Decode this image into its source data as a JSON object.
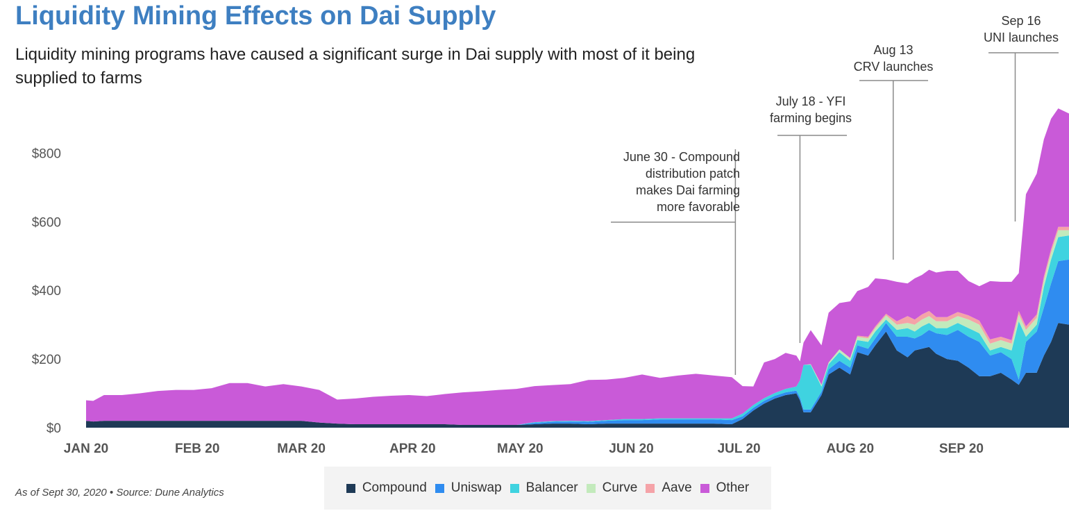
{
  "title": "Liquidity Mining Effects on Dai Supply",
  "subtitle": "Liquidity mining programs have caused a significant surge in Dai supply with most of it being supplied to farms",
  "source": "As of Sept 30, 2020 • Source: Dune Analytics",
  "chart_data": {
    "type": "area",
    "stacked": true,
    "ylim": [
      0,
      1000
    ],
    "yticks": [
      {
        "value": 0,
        "label": "$0"
      },
      {
        "value": 200,
        "label": "$200"
      },
      {
        "value": 400,
        "label": "$400"
      },
      {
        "value": 600,
        "label": "$600"
      },
      {
        "value": 800,
        "label": "$800"
      }
    ],
    "xlim": [
      0,
      274
    ],
    "xticks": [
      {
        "day": 0,
        "label": "JAN 20"
      },
      {
        "day": 31,
        "label": "FEB 20"
      },
      {
        "day": 60,
        "label": "MAR 20"
      },
      {
        "day": 91,
        "label": "APR 20"
      },
      {
        "day": 121,
        "label": "MAY 20"
      },
      {
        "day": 152,
        "label": "JUN 20"
      },
      {
        "day": 182,
        "label": "JUL 20"
      },
      {
        "day": 213,
        "label": "AUG 20"
      },
      {
        "day": 244,
        "label": "SEP 20"
      }
    ],
    "x": [
      0,
      2,
      5,
      10,
      15,
      20,
      25,
      30,
      35,
      40,
      45,
      50,
      55,
      60,
      65,
      70,
      75,
      80,
      85,
      90,
      95,
      100,
      105,
      110,
      115,
      120,
      125,
      130,
      135,
      140,
      145,
      150,
      155,
      160,
      165,
      170,
      175,
      180,
      183,
      186,
      189,
      192,
      195,
      198,
      199,
      200,
      202,
      205,
      207,
      210,
      213,
      215,
      218,
      220,
      223,
      226,
      229,
      231,
      233,
      235,
      237,
      240,
      243,
      246,
      249,
      252,
      255,
      258,
      260,
      262,
      265,
      267,
      269,
      271,
      274
    ],
    "series": [
      {
        "name": "Compound",
        "color": "#1e3a56",
        "values": [
          20,
          18,
          20,
          20,
          20,
          20,
          20,
          20,
          20,
          20,
          20,
          20,
          20,
          20,
          15,
          12,
          10,
          10,
          10,
          10,
          10,
          10,
          8,
          8,
          8,
          8,
          10,
          12,
          12,
          10,
          12,
          12,
          12,
          12,
          12,
          12,
          12,
          10,
          25,
          50,
          70,
          85,
          95,
          100,
          80,
          45,
          45,
          95,
          155,
          175,
          155,
          220,
          210,
          240,
          280,
          225,
          205,
          225,
          230,
          235,
          215,
          200,
          195,
          175,
          150,
          150,
          160,
          140,
          125,
          160,
          160,
          210,
          250,
          305,
          300
        ]
      },
      {
        "name": "Uniswap",
        "color": "#2f8cf0",
        "values": [
          0,
          0,
          0,
          0,
          0,
          0,
          0,
          0,
          0,
          0,
          0,
          0,
          0,
          0,
          0,
          0,
          0,
          0,
          0,
          0,
          0,
          0,
          0,
          0,
          0,
          0,
          4,
          5,
          6,
          7,
          8,
          10,
          10,
          12,
          12,
          12,
          12,
          12,
          8,
          8,
          8,
          8,
          8,
          8,
          8,
          8,
          8,
          10,
          15,
          20,
          20,
          20,
          20,
          20,
          25,
          40,
          60,
          35,
          40,
          50,
          60,
          70,
          90,
          90,
          100,
          60,
          60,
          60,
          15,
          90,
          120,
          140,
          170,
          180,
          190
        ]
      },
      {
        "name": "Balancer",
        "color": "#3fd3e0",
        "values": [
          0,
          0,
          0,
          0,
          0,
          0,
          0,
          0,
          0,
          0,
          0,
          0,
          0,
          0,
          0,
          0,
          0,
          0,
          0,
          0,
          0,
          0,
          0,
          0,
          0,
          0,
          2,
          2,
          2,
          2,
          2,
          3,
          3,
          3,
          3,
          3,
          3,
          5,
          8,
          8,
          8,
          8,
          10,
          12,
          50,
          130,
          130,
          15,
          15,
          25,
          20,
          15,
          20,
          20,
          10,
          20,
          25,
          20,
          25,
          20,
          15,
          20,
          20,
          25,
          25,
          15,
          15,
          25,
          170,
          15,
          20,
          60,
          70,
          70,
          70
        ]
      },
      {
        "name": "Curve",
        "color": "#c3eabc",
        "values": [
          0,
          0,
          0,
          0,
          0,
          0,
          0,
          0,
          0,
          0,
          0,
          0,
          0,
          0,
          0,
          0,
          0,
          0,
          0,
          0,
          0,
          0,
          0,
          0,
          0,
          0,
          0,
          0,
          0,
          0,
          0,
          0,
          0,
          0,
          0,
          0,
          0,
          0,
          0,
          0,
          0,
          0,
          0,
          0,
          0,
          0,
          2,
          5,
          5,
          8,
          8,
          10,
          10,
          10,
          12,
          15,
          15,
          20,
          20,
          20,
          20,
          20,
          20,
          25,
          25,
          20,
          20,
          20,
          20,
          20,
          20,
          20,
          20,
          20,
          15
        ]
      },
      {
        "name": "Aave",
        "color": "#f5a3a8",
        "values": [
          0,
          0,
          0,
          0,
          0,
          0,
          0,
          0,
          0,
          0,
          0,
          0,
          0,
          0,
          0,
          0,
          0,
          0,
          0,
          0,
          0,
          0,
          0,
          0,
          0,
          0,
          0,
          0,
          0,
          0,
          0,
          0,
          0,
          0,
          0,
          0,
          0,
          0,
          0,
          0,
          0,
          0,
          0,
          0,
          0,
          0,
          0,
          0,
          0,
          0,
          0,
          3,
          5,
          5,
          5,
          10,
          20,
          15,
          15,
          15,
          12,
          12,
          12,
          12,
          12,
          12,
          10,
          10,
          10,
          10,
          10,
          10,
          10,
          10,
          10
        ]
      },
      {
        "name": "Other",
        "color": "#c95ad8",
        "values": [
          60,
          60,
          75,
          75,
          80,
          87,
          90,
          90,
          95,
          110,
          110,
          100,
          107,
          100,
          95,
          70,
          75,
          80,
          83,
          85,
          82,
          88,
          95,
          98,
          102,
          105,
          105,
          105,
          107,
          120,
          118,
          120,
          130,
          118,
          125,
          130,
          125,
          120,
          80,
          54,
          104,
          99,
          105,
          90,
          55,
          65,
          99,
          115,
          145,
          135,
          165,
          130,
          145,
          140,
          100,
          115,
          95,
          120,
          115,
          120,
          130,
          135,
          120,
          100,
          100,
          170,
          160,
          170,
          110,
          385,
          410,
          400,
          380,
          345,
          330
        ]
      }
    ],
    "annotations": [
      {
        "label": "June 30 - Compound distribution patch makes Dai farming more favorable",
        "lines": [
          "June 30 - Compound",
          "distribution patch",
          "makes Dai farming",
          "more favorable"
        ],
        "day": 181
      },
      {
        "label": "July 18 - YFI farming begins",
        "lines": [
          "July 18 - YFI",
          "farming begins"
        ],
        "day": 199
      },
      {
        "label": "Aug 13 CRV launches",
        "lines": [
          "Aug 13",
          "CRV launches"
        ],
        "day": 225
      },
      {
        "label": "Sep 16 UNI launches",
        "lines": [
          "Sep 16",
          "UNI launches"
        ],
        "day": 259
      }
    ]
  }
}
